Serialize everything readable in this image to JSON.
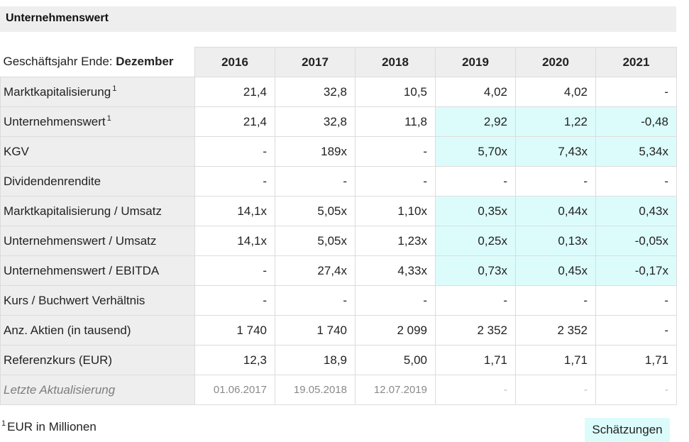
{
  "section": {
    "title": "Unternehmenswert"
  },
  "table": {
    "fiscal_year_label": "Geschäftsjahr Ende: ",
    "fiscal_year_month": "Dezember",
    "years": [
      "2016",
      "2017",
      "2018",
      "2019",
      "2020",
      "2021"
    ],
    "estimate_columns": [
      3,
      4,
      5
    ],
    "rows": [
      {
        "label": "Marktkapitalisierung",
        "footnote": "1",
        "values": [
          "21,4",
          "32,8",
          "10,5",
          "4,02",
          "4,02",
          "-"
        ],
        "estimate_highlight": false
      },
      {
        "label": "Unternehmenswert",
        "footnote": "1",
        "values": [
          "21,4",
          "32,8",
          "11,8",
          "2,92",
          "1,22",
          "-0,48"
        ],
        "estimate_highlight": true
      },
      {
        "label": "KGV",
        "values": [
          "-",
          "189x",
          "-",
          "5,70x",
          "7,43x",
          "5,34x"
        ],
        "estimate_highlight": true
      },
      {
        "label": "Dividendenrendite",
        "values": [
          "-",
          "-",
          "-",
          "-",
          "-",
          "-"
        ],
        "estimate_highlight": false
      },
      {
        "label": "Marktkapitalisierung / Umsatz",
        "values": [
          "14,1x",
          "5,05x",
          "1,10x",
          "0,35x",
          "0,44x",
          "0,43x"
        ],
        "estimate_highlight": true
      },
      {
        "label": "Unternehmenswert / Umsatz",
        "values": [
          "14,1x",
          "5,05x",
          "1,23x",
          "0,25x",
          "0,13x",
          "-0,05x"
        ],
        "estimate_highlight": true
      },
      {
        "label": "Unternehmenswert / EBITDA",
        "values": [
          "-",
          "27,4x",
          "4,33x",
          "0,73x",
          "0,45x",
          "-0,17x"
        ],
        "estimate_highlight": true
      },
      {
        "label": "Kurs / Buchwert Verhältnis",
        "values": [
          "-",
          "-",
          "-",
          "-",
          "-",
          "-"
        ],
        "estimate_highlight": false
      },
      {
        "label": "Anz. Aktien (in tausend)",
        "values": [
          "1 740",
          "1 740",
          "2 099",
          "2 352",
          "2 352",
          "-"
        ],
        "estimate_highlight": false
      },
      {
        "label": "Referenzkurs (EUR)",
        "values": [
          "12,3",
          "18,9",
          "5,00",
          "1,71",
          "1,71",
          "1,71"
        ],
        "estimate_highlight": false
      }
    ],
    "update_row": {
      "label": "Letzte Aktualisierung",
      "values": [
        "01.06.2017",
        "19.05.2018",
        "12.07.2019",
        "-",
        "-",
        "-"
      ]
    }
  },
  "footnote": {
    "marker": "1",
    "text": "EUR in Millionen"
  },
  "estimates_button": {
    "label": "Schätzungen"
  },
  "colors": {
    "estimate_bg": "#dcfcfc",
    "header_bg": "#eeeeee",
    "border": "#dcdcdc"
  }
}
